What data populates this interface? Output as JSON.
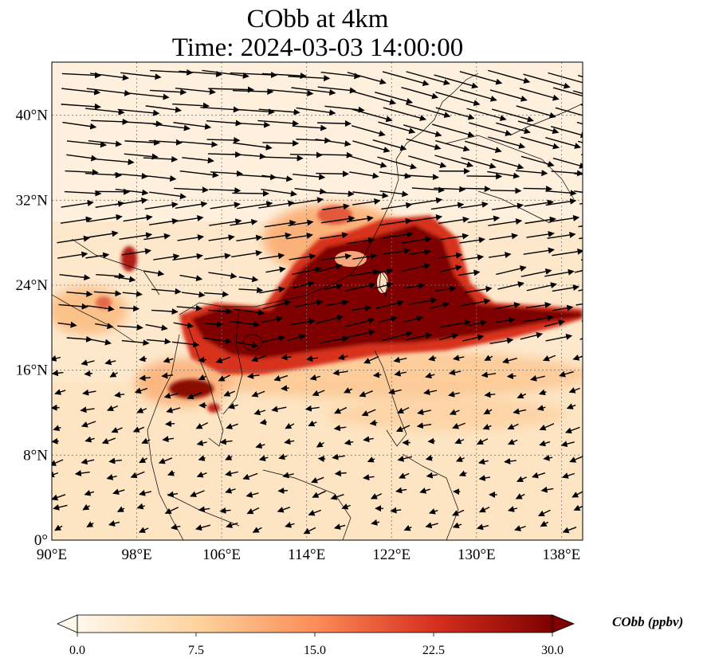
{
  "title": "CObb at 4km",
  "subtitle": "Time: 2024-03-03 14:00:00",
  "map": {
    "lon_range": [
      90,
      140
    ],
    "lat_range": [
      0,
      45
    ],
    "lon_ticks": [
      "90°E",
      "98°E",
      "106°E",
      "114°E",
      "122°E",
      "130°E",
      "138°E"
    ],
    "lat_ticks": [
      "0°",
      "8°N",
      "16°N",
      "24°N",
      "32°N",
      "40°N"
    ],
    "lon_tick_values": [
      90,
      98,
      106,
      114,
      122,
      130,
      138
    ],
    "lat_tick_values": [
      0,
      8,
      16,
      24,
      32,
      40
    ],
    "gridlines": true,
    "field": "CObb concentration (filled contour, OrRd colormap)",
    "vectors": "wind arrows"
  },
  "colorbar": {
    "label": "CObb (ppbv)",
    "ticks": [
      "0.0",
      "7.5",
      "15.0",
      "22.5",
      "30.0"
    ],
    "range": [
      0,
      30
    ],
    "extend": "both",
    "colors": [
      "#fff7ec",
      "#fdd49e",
      "#fc8d59",
      "#d7301f",
      "#7f0000"
    ]
  }
}
